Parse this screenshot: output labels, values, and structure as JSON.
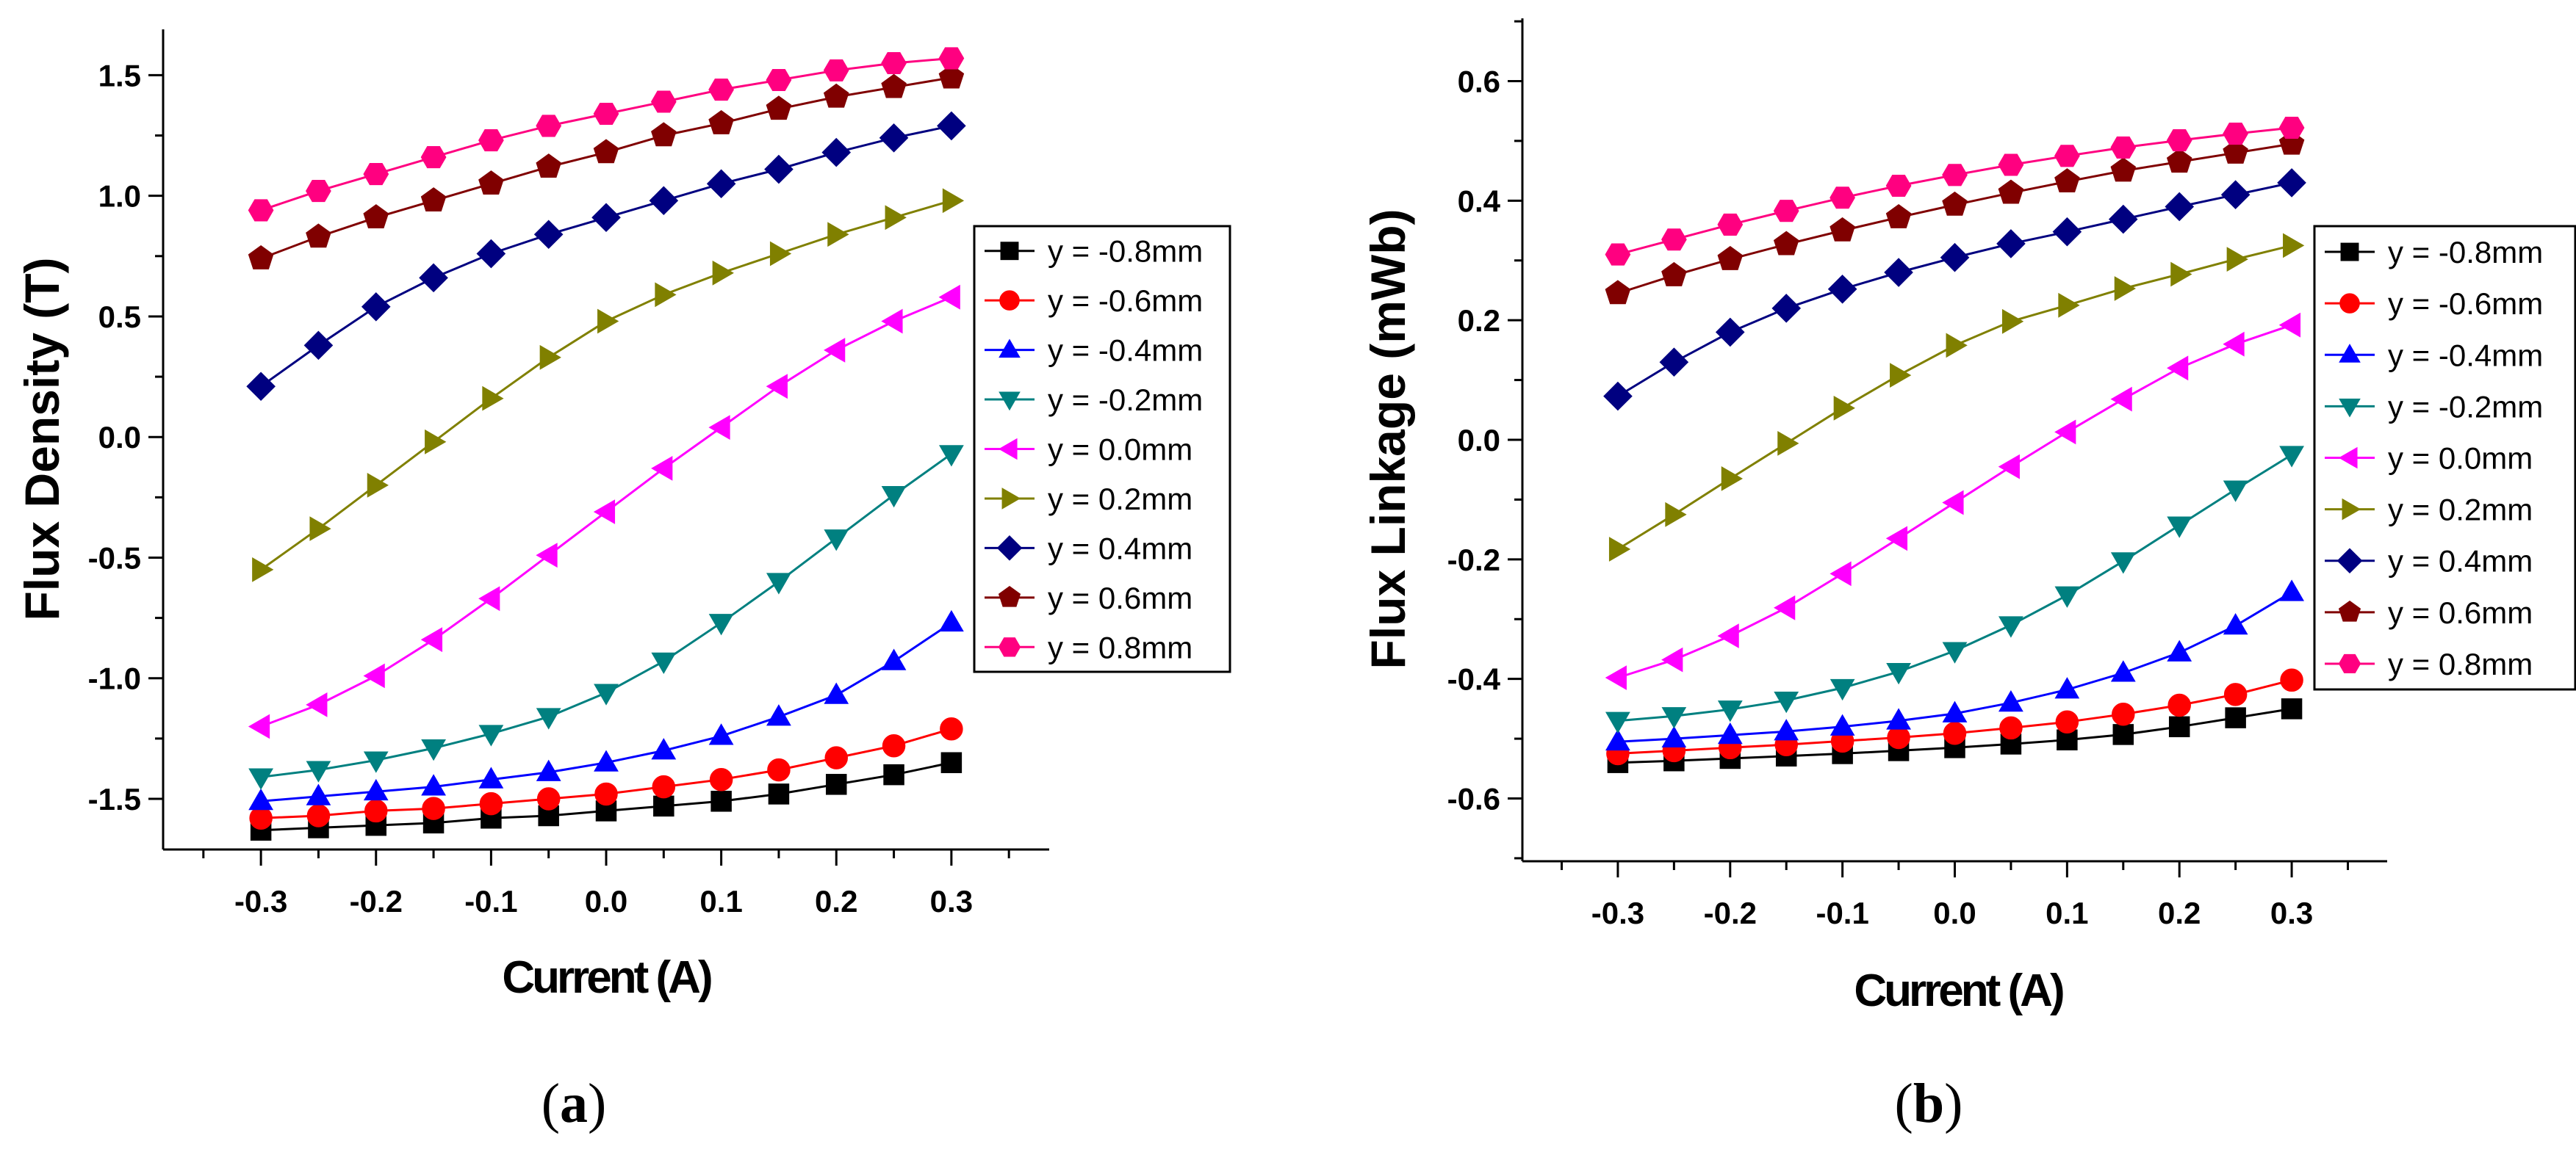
{
  "chart_data": [
    {
      "id": "a",
      "type": "line",
      "caption": {
        "open": "(",
        "letter": "a",
        "close": ")"
      },
      "xlabel": "Current (A)",
      "ylabel": "Flux Density (T)",
      "xlim": [
        -0.385,
        0.385
      ],
      "ylim": [
        -1.71,
        1.69
      ],
      "xticks": [
        -0.3,
        -0.2,
        -0.1,
        0.0,
        0.1,
        0.2,
        0.3
      ],
      "xtick_labels": [
        "-0.3",
        "-0.2",
        "-0.1",
        "0.0",
        "0.1",
        "0.2",
        "0.3"
      ],
      "yticks": [
        -1.5,
        -1.0,
        -0.5,
        0.0,
        0.5,
        1.0,
        1.5
      ],
      "ytick_labels": [
        "-1.5",
        "-1.0",
        "-0.5",
        "0.0",
        "0.5",
        "1.0",
        "1.5"
      ],
      "grid": false,
      "legend_position": "right",
      "x": [
        -0.3,
        -0.25,
        -0.2,
        -0.15,
        -0.1,
        -0.05,
        0.0,
        0.05,
        0.1,
        0.15,
        0.2,
        0.25,
        0.3
      ],
      "series": [
        {
          "name": "y = -0.8mm",
          "color": "#000000",
          "marker": "square",
          "values": [
            -1.63,
            -1.62,
            -1.61,
            -1.6,
            -1.58,
            -1.57,
            -1.55,
            -1.53,
            -1.51,
            -1.48,
            -1.44,
            -1.4,
            -1.35
          ]
        },
        {
          "name": "y = -0.6mm",
          "color": "#ff0000",
          "marker": "circle",
          "values": [
            -1.58,
            -1.57,
            -1.55,
            -1.54,
            -1.52,
            -1.5,
            -1.48,
            -1.45,
            -1.42,
            -1.38,
            -1.33,
            -1.28,
            -1.21
          ]
        },
        {
          "name": "y = -0.4mm",
          "color": "#0000ff",
          "marker": "triangle-up",
          "values": [
            -1.51,
            -1.49,
            -1.47,
            -1.45,
            -1.42,
            -1.39,
            -1.35,
            -1.3,
            -1.24,
            -1.16,
            -1.07,
            -0.93,
            -0.77
          ]
        },
        {
          "name": "y = -0.2mm",
          "color": "#008080",
          "marker": "triangle-down",
          "values": [
            -1.41,
            -1.38,
            -1.34,
            -1.29,
            -1.23,
            -1.16,
            -1.06,
            -0.93,
            -0.77,
            -0.6,
            -0.42,
            -0.24,
            -0.07
          ]
        },
        {
          "name": "y = 0.0mm",
          "color": "#ff00ff",
          "marker": "triangle-left",
          "values": [
            -1.2,
            -1.11,
            -0.99,
            -0.84,
            -0.67,
            -0.49,
            -0.31,
            -0.13,
            0.04,
            0.21,
            0.36,
            0.48,
            0.58
          ]
        },
        {
          "name": "y = 0.2mm",
          "color": "#808000",
          "marker": "triangle-right",
          "values": [
            -0.55,
            -0.38,
            -0.2,
            -0.02,
            0.16,
            0.33,
            0.48,
            0.59,
            0.68,
            0.76,
            0.84,
            0.91,
            0.98
          ]
        },
        {
          "name": "y = 0.4mm",
          "color": "#000080",
          "marker": "diamond",
          "values": [
            0.21,
            0.38,
            0.54,
            0.66,
            0.76,
            0.84,
            0.91,
            0.98,
            1.05,
            1.11,
            1.18,
            1.24,
            1.29
          ]
        },
        {
          "name": "y = 0.6mm",
          "color": "#800000",
          "marker": "pentagon",
          "values": [
            0.74,
            0.83,
            0.91,
            0.98,
            1.05,
            1.12,
            1.18,
            1.25,
            1.3,
            1.36,
            1.41,
            1.45,
            1.49
          ]
        },
        {
          "name": "y = 0.8mm",
          "color": "#ff0080",
          "marker": "hexagon",
          "values": [
            0.94,
            1.02,
            1.09,
            1.16,
            1.23,
            1.29,
            1.34,
            1.39,
            1.44,
            1.48,
            1.52,
            1.55,
            1.57
          ]
        }
      ]
    },
    {
      "id": "b",
      "type": "line",
      "caption": {
        "open": "(",
        "letter": "b",
        "close": ")"
      },
      "xlabel": "Current (A)",
      "ylabel": "Flux Linkage (mWb)",
      "xlim": [
        -0.385,
        0.385
      ],
      "ylim": [
        -0.705,
        0.705
      ],
      "xticks": [
        -0.3,
        -0.2,
        -0.1,
        0.0,
        0.1,
        0.2,
        0.3
      ],
      "xtick_labels": [
        "-0.3",
        "-0.2",
        "-0.1",
        "0.0",
        "0.1",
        "0.2",
        "0.3"
      ],
      "yticks": [
        -0.6,
        -0.4,
        -0.2,
        0.0,
        0.2,
        0.4,
        0.6
      ],
      "ytick_labels": [
        "-0.6",
        "-0.4",
        "-0.2",
        "0.0",
        "0.2",
        "0.4",
        "0.6"
      ],
      "grid": false,
      "legend_position": "right",
      "x": [
        -0.3,
        -0.25,
        -0.2,
        -0.15,
        -0.1,
        -0.05,
        0.0,
        0.05,
        0.1,
        0.15,
        0.2,
        0.25,
        0.3
      ],
      "series": [
        {
          "name": "y = -0.8mm",
          "color": "#000000",
          "marker": "square",
          "values": [
            -0.54,
            -0.537,
            -0.533,
            -0.529,
            -0.525,
            -0.52,
            -0.515,
            -0.509,
            -0.502,
            -0.493,
            -0.48,
            -0.465,
            -0.45
          ]
        },
        {
          "name": "y = -0.6mm",
          "color": "#ff0000",
          "marker": "circle",
          "values": [
            -0.525,
            -0.52,
            -0.515,
            -0.51,
            -0.504,
            -0.498,
            -0.491,
            -0.482,
            -0.472,
            -0.459,
            -0.444,
            -0.426,
            -0.402
          ]
        },
        {
          "name": "y = -0.4mm",
          "color": "#0000ff",
          "marker": "triangle-up",
          "values": [
            -0.505,
            -0.5,
            -0.494,
            -0.488,
            -0.48,
            -0.47,
            -0.458,
            -0.44,
            -0.418,
            -0.39,
            -0.356,
            -0.311,
            -0.255
          ]
        },
        {
          "name": "y = -0.2mm",
          "color": "#008080",
          "marker": "triangle-down",
          "values": [
            -0.47,
            -0.462,
            -0.451,
            -0.436,
            -0.415,
            -0.388,
            -0.353,
            -0.31,
            -0.26,
            -0.203,
            -0.143,
            -0.083,
            -0.025
          ]
        },
        {
          "name": "y = 0.0mm",
          "color": "#ff00ff",
          "marker": "triangle-left",
          "values": [
            -0.398,
            -0.368,
            -0.328,
            -0.281,
            -0.224,
            -0.165,
            -0.105,
            -0.045,
            0.013,
            0.068,
            0.12,
            0.16,
            0.192
          ]
        },
        {
          "name": "y = 0.2mm",
          "color": "#808000",
          "marker": "triangle-right",
          "values": [
            -0.183,
            -0.125,
            -0.065,
            -0.006,
            0.053,
            0.108,
            0.158,
            0.198,
            0.225,
            0.253,
            0.277,
            0.302,
            0.325
          ]
        },
        {
          "name": "y = 0.4mm",
          "color": "#000080",
          "marker": "diamond",
          "values": [
            0.073,
            0.13,
            0.18,
            0.22,
            0.252,
            0.28,
            0.305,
            0.328,
            0.348,
            0.369,
            0.39,
            0.41,
            0.43
          ]
        },
        {
          "name": "y = 0.6mm",
          "color": "#800000",
          "marker": "pentagon",
          "values": [
            0.245,
            0.275,
            0.302,
            0.327,
            0.35,
            0.372,
            0.393,
            0.413,
            0.432,
            0.45,
            0.465,
            0.48,
            0.495
          ]
        },
        {
          "name": "y = 0.8mm",
          "color": "#ff0080",
          "marker": "hexagon",
          "values": [
            0.31,
            0.335,
            0.36,
            0.383,
            0.405,
            0.425,
            0.443,
            0.46,
            0.475,
            0.489,
            0.501,
            0.512,
            0.522
          ]
        }
      ]
    }
  ]
}
